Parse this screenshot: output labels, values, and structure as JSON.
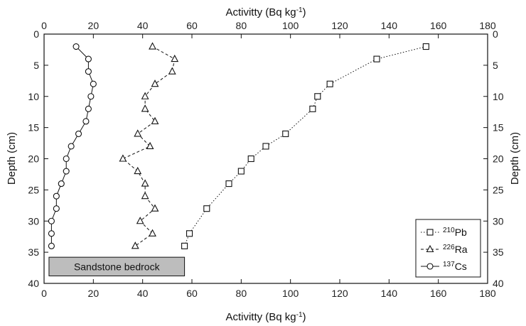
{
  "chart_data": {
    "type": "scatter",
    "orientation": "depth-profile",
    "x_axis_label_top": "Activitty (Bq kg-1)",
    "x_axis_label_bottom": "Activitty (Bq kg-1)",
    "x_label_parts": {
      "text": "Activitty (Bq kg",
      "sup": "-1",
      "close": ")"
    },
    "y_axis_label_left": "Depth (cm)",
    "y_axis_label_right": "Depth (cm)",
    "xlim": [
      0,
      180
    ],
    "ylim": [
      0,
      40
    ],
    "y_inverted": true,
    "x_ticks": [
      0,
      20,
      40,
      60,
      80,
      100,
      120,
      140,
      160,
      180
    ],
    "y_ticks": [
      0,
      5,
      10,
      15,
      20,
      25,
      30,
      35,
      40
    ],
    "grid": false,
    "legend_placement": "bottom-right",
    "series": [
      {
        "name": "210Pb",
        "label_sup": "210",
        "label_base": "Pb",
        "marker": "square",
        "line": "dotted",
        "points": [
          {
            "x": 155,
            "y": 2
          },
          {
            "x": 135,
            "y": 4
          },
          {
            "x": 116,
            "y": 8
          },
          {
            "x": 111,
            "y": 10
          },
          {
            "x": 109,
            "y": 12
          },
          {
            "x": 98,
            "y": 16
          },
          {
            "x": 90,
            "y": 18
          },
          {
            "x": 84,
            "y": 20
          },
          {
            "x": 80,
            "y": 22
          },
          {
            "x": 75,
            "y": 24
          },
          {
            "x": 66,
            "y": 28
          },
          {
            "x": 59,
            "y": 32
          },
          {
            "x": 57,
            "y": 34
          }
        ]
      },
      {
        "name": "226Ra",
        "label_sup": "226",
        "label_base": "Ra",
        "marker": "triangle",
        "line": "dashed",
        "points": [
          {
            "x": 44,
            "y": 2
          },
          {
            "x": 53,
            "y": 4
          },
          {
            "x": 52,
            "y": 6
          },
          {
            "x": 45,
            "y": 8
          },
          {
            "x": 41,
            "y": 10
          },
          {
            "x": 41,
            "y": 12
          },
          {
            "x": 45,
            "y": 14
          },
          {
            "x": 38,
            "y": 16
          },
          {
            "x": 43,
            "y": 18
          },
          {
            "x": 32,
            "y": 20
          },
          {
            "x": 38,
            "y": 22
          },
          {
            "x": 41,
            "y": 24
          },
          {
            "x": 41,
            "y": 26
          },
          {
            "x": 45,
            "y": 28
          },
          {
            "x": 39,
            "y": 30
          },
          {
            "x": 44,
            "y": 32
          },
          {
            "x": 37,
            "y": 34
          }
        ]
      },
      {
        "name": "137Cs",
        "label_sup": "137",
        "label_base": "Cs",
        "marker": "circle",
        "line": "solid",
        "points": [
          {
            "x": 13,
            "y": 2
          },
          {
            "x": 18,
            "y": 4
          },
          {
            "x": 18,
            "y": 6
          },
          {
            "x": 20,
            "y": 8
          },
          {
            "x": 19,
            "y": 10
          },
          {
            "x": 18,
            "y": 12
          },
          {
            "x": 17,
            "y": 14
          },
          {
            "x": 14,
            "y": 16
          },
          {
            "x": 11,
            "y": 18
          },
          {
            "x": 9,
            "y": 20
          },
          {
            "x": 9,
            "y": 22
          },
          {
            "x": 7,
            "y": 24
          },
          {
            "x": 5,
            "y": 26
          },
          {
            "x": 5,
            "y": 28
          },
          {
            "x": 3,
            "y": 30
          },
          {
            "x": 3,
            "y": 32
          },
          {
            "x": 3,
            "y": 34
          }
        ]
      }
    ],
    "annotation": {
      "text": "Sandstone bedrock",
      "x_range": [
        2,
        57
      ],
      "y_range": [
        35.8,
        38.8
      ],
      "fill": "#bdbdbd"
    }
  }
}
